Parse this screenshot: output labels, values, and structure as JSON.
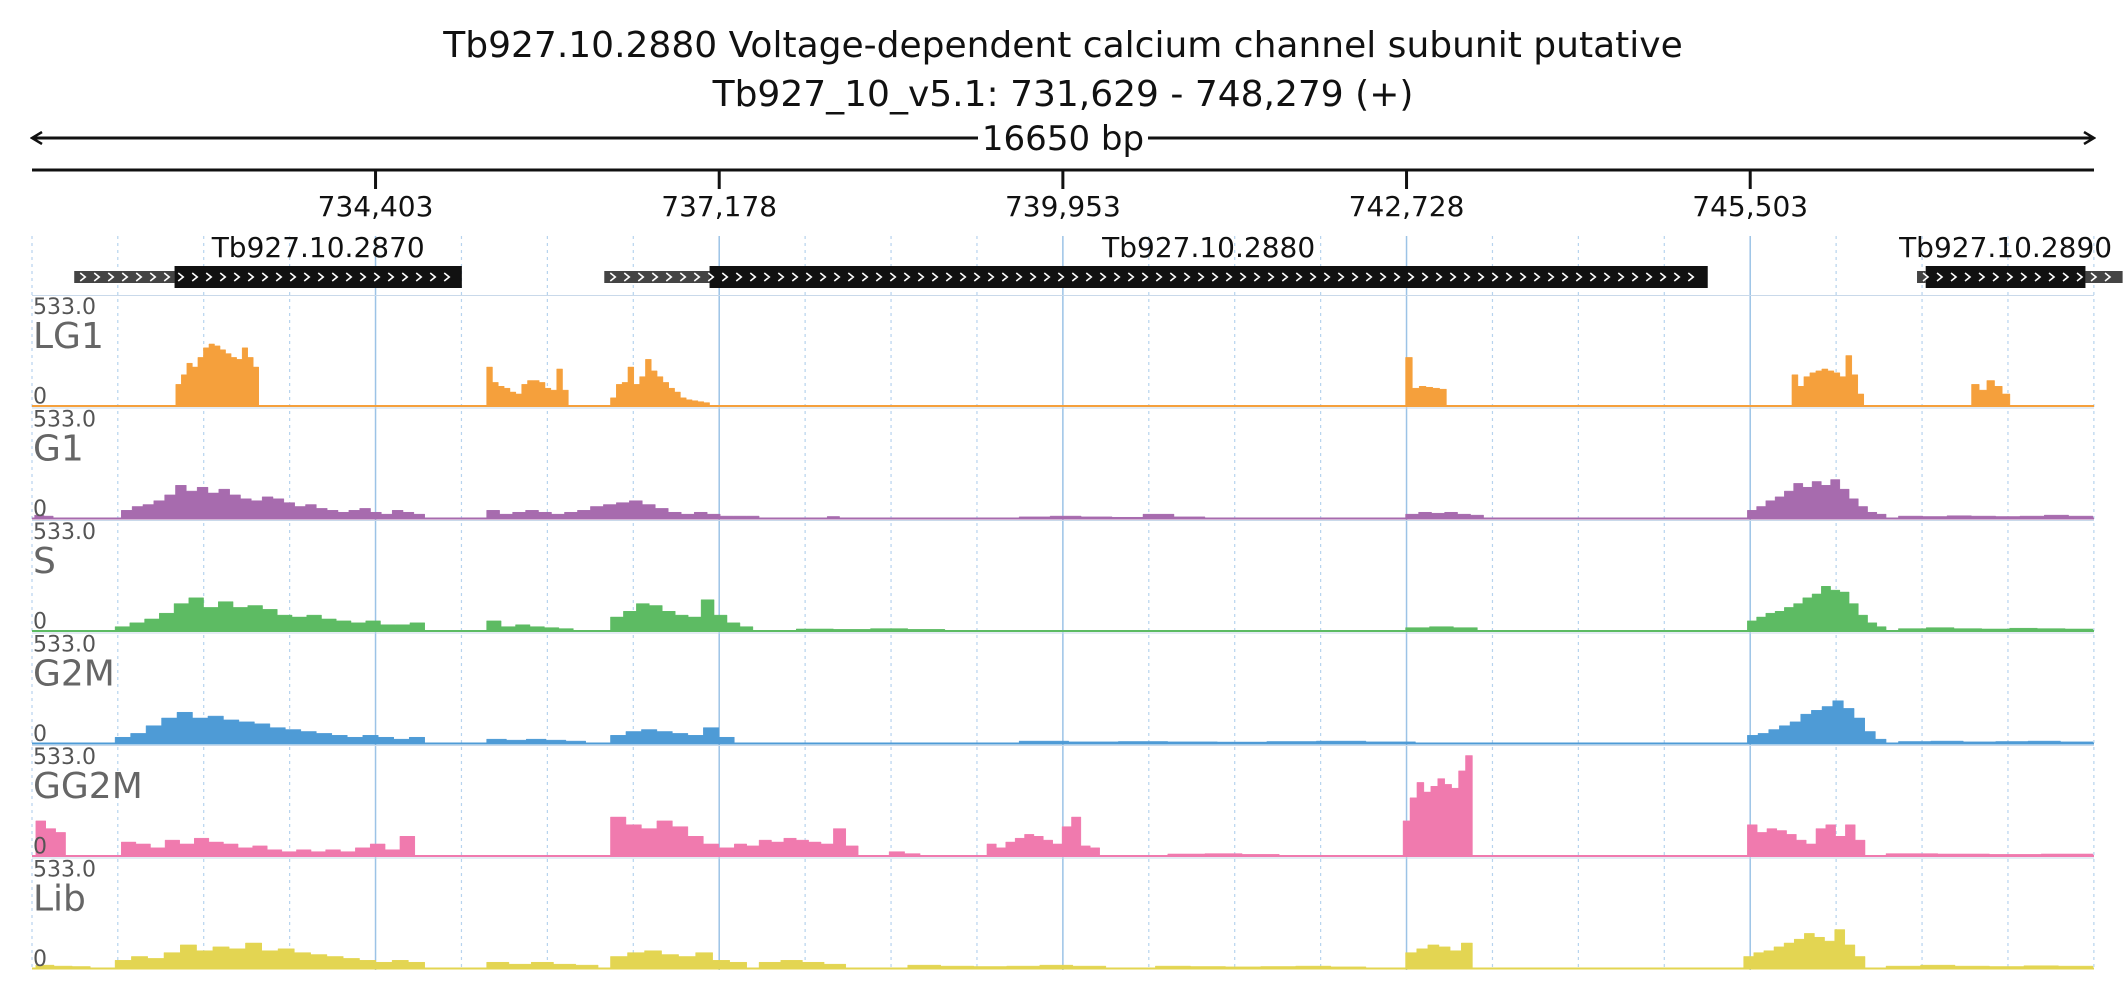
{
  "chart_data": {
    "type": "area",
    "title": "Tb927.10.2880  Voltage-dependent calcium channel subunit  putative",
    "subtitle": "Tb927_10_v5.1: 731,629 - 748,279 (+)",
    "region": {
      "chrom": "Tb927_10_v5.1",
      "start": 731629,
      "end": 748279,
      "strand": "+"
    },
    "span_label": "16650 bp",
    "xlim": [
      731629,
      748279
    ],
    "ylim": [
      0,
      533.0
    ],
    "grid": true,
    "x_ticks": [
      {
        "value": 734403,
        "label": "734,403"
      },
      {
        "value": 737178,
        "label": "737,178"
      },
      {
        "value": 739953,
        "label": "739,953"
      },
      {
        "value": 742728,
        "label": "742,728"
      },
      {
        "value": 745503,
        "label": "745,503"
      }
    ],
    "genes": [
      {
        "name": "Tb927.10.2870",
        "start": 731970,
        "cds_start": 732780,
        "cds_end": 735100,
        "end": 735100
      },
      {
        "name": "Tb927.10.2880",
        "start": 736250,
        "cds_start": 737100,
        "cds_end": 745160,
        "end": 745160
      },
      {
        "name": "Tb927.10.2890",
        "start": 746850,
        "cds_start": 746920,
        "cds_end": 748210,
        "end": 748510
      }
    ],
    "tracks": [
      {
        "name": "LG1",
        "color": "#F5A03C",
        "max_label": "533.0",
        "min_label": "0",
        "segments": [
          {
            "range": [
              732790,
              733460
            ],
            "values": [
              110,
              160,
              220,
              200,
              250,
              300,
              320,
              310,
              290,
              270,
              250,
              240,
              300,
              250,
              200
            ]
          },
          {
            "range": [
              735300,
              735960
            ],
            "values": [
              200,
              120,
              100,
              90,
              70,
              60,
              110,
              130,
              130,
              120,
              90,
              80,
              190,
              80
            ]
          },
          {
            "range": [
              736300,
              737100
            ],
            "values": [
              40,
              110,
              120,
              200,
              110,
              150,
              240,
              180,
              150,
              120,
              90,
              70,
              40,
              30,
              25,
              20,
              15
            ]
          },
          {
            "range": [
              742720,
              743050
            ],
            "values": [
              250,
              90,
              100,
              95,
              90,
              85
            ]
          },
          {
            "range": [
              745840,
              746420
            ],
            "values": [
              160,
              100,
              150,
              170,
              180,
              190,
              180,
              170,
              150,
              260,
              160,
              60
            ]
          },
          {
            "range": [
              747290,
              747600
            ],
            "values": [
              110,
              80,
              130,
              100,
              60
            ]
          }
        ]
      },
      {
        "name": "G1",
        "color": "#A76BAE",
        "max_label": "533.0",
        "min_label": "0",
        "segments": [
          {
            "range": [
              731650,
              731800
            ],
            "values": [
              15,
              10
            ]
          },
          {
            "range": [
              732350,
              734800
            ],
            "values": [
              40,
              60,
              70,
              90,
              120,
              170,
              140,
              160,
              130,
              150,
              120,
              100,
              90,
              110,
              100,
              80,
              60,
              70,
              50,
              40,
              30,
              40,
              50,
              30,
              20,
              40,
              30,
              20
            ]
          },
          {
            "range": [
              735300,
              737500
            ],
            "values": [
              40,
              20,
              30,
              40,
              30,
              20,
              30,
              40,
              60,
              70,
              80,
              90,
              70,
              50,
              30,
              20,
              30,
              20,
              10,
              10,
              10
            ]
          },
          {
            "range": [
              738050,
              738150
            ],
            "values": [
              8
            ]
          },
          {
            "range": [
              739600,
              741100
            ],
            "values": [
              6,
              10,
              6,
              4,
              20,
              6
            ]
          },
          {
            "range": [
              742720,
              743350
            ],
            "values": [
              20,
              30,
              25,
              30,
              20,
              15
            ]
          },
          {
            "range": [
              745480,
              746600
            ],
            "values": [
              40,
              60,
              90,
              110,
              140,
              180,
              160,
              190,
              170,
              200,
              150,
              100,
              60,
              30,
              20
            ]
          },
          {
            "range": [
              746700,
              748270
            ],
            "values": [
              10,
              8,
              12,
              10,
              8,
              10,
              15,
              10
            ]
          }
        ]
      },
      {
        "name": "S",
        "color": "#5DBB63",
        "max_label": "533.0",
        "min_label": "0",
        "segments": [
          {
            "range": [
              732300,
              734800
            ],
            "values": [
              20,
              40,
              60,
              90,
              140,
              170,
              120,
              150,
              120,
              130,
              110,
              80,
              70,
              80,
              60,
              50,
              40,
              50,
              30,
              30,
              40
            ]
          },
          {
            "range": [
              735300,
              736000
            ],
            "values": [
              50,
              20,
              30,
              20,
              15,
              10
            ]
          },
          {
            "range": [
              736300,
              737450
            ],
            "values": [
              70,
              100,
              140,
              130,
              100,
              80,
              70,
              160,
              80,
              40,
              20
            ]
          },
          {
            "range": [
              737800,
              739000
            ],
            "values": [
              8,
              6,
              10,
              6
            ]
          },
          {
            "range": [
              742720,
              743300
            ],
            "values": [
              15,
              20,
              15
            ]
          },
          {
            "range": [
              745480,
              746600
            ],
            "values": [
              50,
              70,
              90,
              100,
              120,
              140,
              170,
              190,
              230,
              210,
              200,
              140,
              80,
              40,
              20
            ]
          },
          {
            "range": [
              746700,
              748270
            ],
            "values": [
              10,
              15,
              10,
              8,
              12,
              10,
              8
            ]
          }
        ]
      },
      {
        "name": "G2M",
        "color": "#4E9BD6",
        "max_label": "533.0",
        "min_label": "0",
        "segments": [
          {
            "range": [
              732300,
              734800
            ],
            "values": [
              30,
              50,
              90,
              130,
              160,
              130,
              140,
              120,
              110,
              100,
              80,
              70,
              60,
              50,
              40,
              30,
              40,
              30,
              20,
              30
            ]
          },
          {
            "range": [
              735300,
              736100
            ],
            "values": [
              20,
              15,
              20,
              15,
              10
            ]
          },
          {
            "range": [
              736300,
              737300
            ],
            "values": [
              40,
              60,
              70,
              60,
              50,
              40,
              80,
              30
            ]
          },
          {
            "range": [
              739600,
              742800
            ],
            "values": [
              10,
              6,
              8,
              6,
              5,
              8,
              10,
              6
            ]
          },
          {
            "range": [
              745480,
              746600
            ],
            "values": [
              40,
              50,
              70,
              90,
              110,
              150,
              170,
              190,
              220,
              180,
              130,
              60,
              20
            ]
          },
          {
            "range": [
              746700,
              748270
            ],
            "values": [
              8,
              10,
              6,
              8,
              10,
              6
            ]
          }
        ]
      },
      {
        "name": "GG2M",
        "color": "#F07AAE",
        "max_label": "533.0",
        "min_label": "0",
        "segments": [
          {
            "range": [
              731660,
              731900
            ],
            "values": [
              180,
              140,
              120
            ]
          },
          {
            "range": [
              732350,
              734000
            ],
            "values": [
              70,
              60,
              40,
              80,
              60,
              90,
              70,
              60,
              40,
              50,
              30,
              20,
              30,
              20
            ]
          },
          {
            "range": [
              734000,
              734720
            ],
            "values": [
              30,
              20,
              40,
              60,
              30,
              100
            ]
          },
          {
            "range": [
              736300,
              737300
            ],
            "values": [
              200,
              160,
              140,
              180,
              150,
              100,
              60,
              40
            ]
          },
          {
            "range": [
              737300,
              738300
            ],
            "values": [
              60,
              50,
              80,
              70,
              90,
              80,
              70,
              60,
              140,
              50
            ]
          },
          {
            "range": [
              738550,
              738800
            ],
            "values": [
              20,
              10
            ]
          },
          {
            "range": [
              739340,
              740250
            ],
            "values": [
              60,
              40,
              70,
              90,
              110,
              100,
              80,
              60,
              150,
              200,
              50,
              40
            ]
          },
          {
            "range": [
              740800,
              741700
            ],
            "values": [
              8,
              10,
              6
            ]
          },
          {
            "range": [
              742700,
              743260
            ],
            "values": [
              180,
              300,
              380,
              330,
              360,
              400,
              370,
              350,
              440,
              520
            ]
          },
          {
            "range": [
              745480,
              746430
            ],
            "values": [
              160,
              120,
              140,
              130,
              110,
              80,
              60,
              140,
              160,
              100,
              160,
              80
            ]
          },
          {
            "range": [
              746600,
              748270
            ],
            "values": [
              10,
              8,
              6,
              8
            ]
          }
        ]
      },
      {
        "name": "Lib",
        "color": "#E3D552",
        "max_label": "533.0",
        "min_label": "0",
        "segments": [
          {
            "range": [
              731660,
              732100
            ],
            "values": [
              15,
              10,
              8
            ]
          },
          {
            "range": [
              732300,
              734800
            ],
            "values": [
              40,
              60,
              50,
              80,
              120,
              90,
              110,
              100,
              130,
              90,
              100,
              80,
              70,
              60,
              50,
              40,
              30,
              40,
              30
            ]
          },
          {
            "range": [
              735300,
              736200
            ],
            "values": [
              30,
              20,
              30,
              20,
              15
            ]
          },
          {
            "range": [
              736300,
              737400
            ],
            "values": [
              60,
              80,
              90,
              70,
              60,
              80,
              40,
              30
            ]
          },
          {
            "range": [
              737500,
              738200
            ],
            "values": [
              30,
              40,
              30,
              20
            ]
          },
          {
            "range": [
              738700,
              740300
            ],
            "values": [
              15,
              10,
              8,
              10,
              15,
              10
            ]
          },
          {
            "range": [
              740700,
              742400
            ],
            "values": [
              10,
              8,
              6,
              8,
              10,
              6
            ]
          },
          {
            "range": [
              742720,
              743260
            ],
            "values": [
              80,
              100,
              120,
              110,
              90,
              130
            ]
          },
          {
            "range": [
              745450,
              746430
            ],
            "values": [
              60,
              80,
              90,
              110,
              130,
              150,
              180,
              160,
              140,
              200,
              120,
              60
            ]
          },
          {
            "range": [
              746600,
              748270
            ],
            "values": [
              10,
              15,
              10,
              8,
              12,
              10
            ]
          }
        ]
      }
    ]
  }
}
